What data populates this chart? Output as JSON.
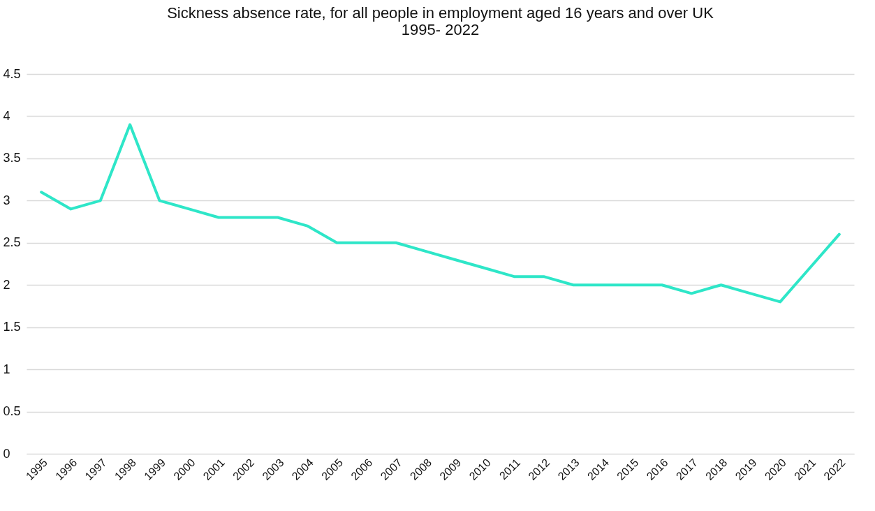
{
  "chart_data": {
    "type": "line",
    "title": "Sickness absence rate, for all people in employment aged 16 years and over UK",
    "subtitle": "1995- 2022",
    "categories": [
      "1995",
      "1996",
      "1997",
      "1998",
      "1999",
      "2000",
      "2001",
      "2002",
      "2003",
      "2004",
      "2005",
      "2006",
      "2007",
      "2008",
      "2009",
      "2010",
      "2011",
      "2012",
      "2013",
      "2014",
      "2015",
      "2016",
      "2017",
      "2018",
      "2019",
      "2020",
      "2021",
      "2022"
    ],
    "series": [
      {
        "color": "#2ee6c8",
        "values": [
          3.1,
          2.9,
          3.0,
          3.9,
          3.0,
          2.9,
          2.8,
          2.8,
          2.8,
          2.7,
          2.5,
          2.5,
          2.5,
          2.4,
          2.3,
          2.2,
          2.1,
          2.1,
          2.0,
          2.0,
          2.0,
          2.0,
          1.9,
          2.0,
          1.9,
          1.8,
          2.2,
          2.6
        ]
      }
    ],
    "ylim": [
      0,
      4.5
    ],
    "yticks": [
      0,
      0.5,
      1,
      1.5,
      2,
      2.5,
      3,
      3.5,
      4,
      4.5
    ],
    "grid": "y",
    "marker": "none",
    "line_style": "solid"
  }
}
